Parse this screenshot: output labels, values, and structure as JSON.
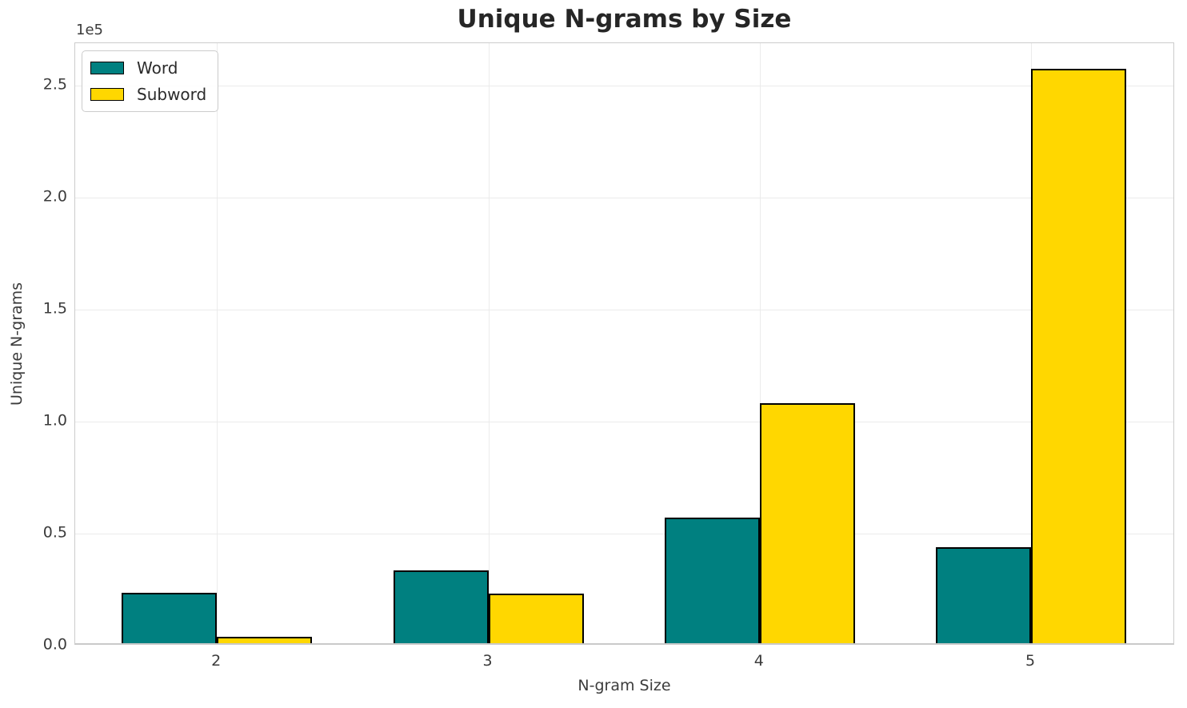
{
  "chart_data": {
    "type": "bar",
    "title": "Unique N-grams by Size",
    "xlabel": "N-gram Size",
    "ylabel": "Unique N-grams",
    "categories": [
      "2",
      "3",
      "4",
      "5"
    ],
    "series": [
      {
        "name": "Word",
        "color": "#008080",
        "values": [
          22500,
          32500,
          56000,
          43000
        ]
      },
      {
        "name": "Subword",
        "color": "#FFD700",
        "values": [
          3000,
          22000,
          107000,
          256500
        ]
      }
    ],
    "bar_edge_color": "#000000",
    "ylim": [
      0,
      269000
    ],
    "y_ticks": [
      "0.0",
      "0.5",
      "1.0",
      "1.5",
      "2.0",
      "2.5"
    ],
    "y_tick_values": [
      0,
      50000,
      100000,
      150000,
      200000,
      250000
    ],
    "offset_text": "1e5",
    "grid": "both",
    "legend_position": "upper left"
  },
  "colors": {
    "background": "#ffffff",
    "gridline": "#ebebeb",
    "spine": "#cccccc",
    "title_text": "#262626",
    "tick_text": "#3b3b3b"
  }
}
